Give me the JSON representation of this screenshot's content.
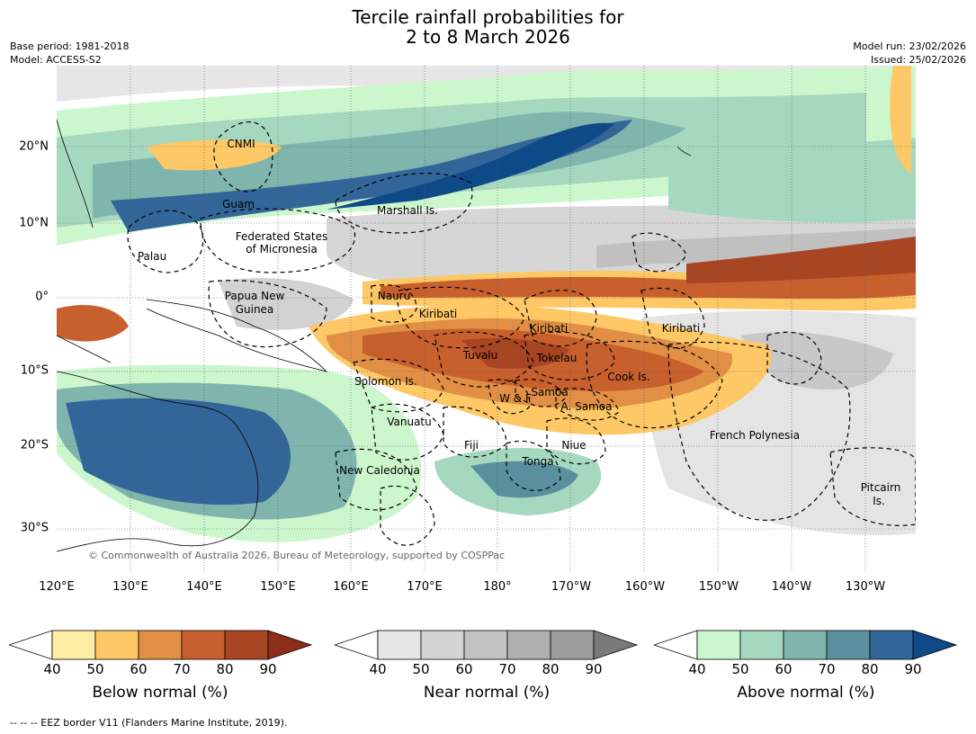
{
  "title_line1": "Tercile rainfall probabilities for",
  "title_line2": "2 to 8 March 2026",
  "base_period": "Base period: 1981-2018",
  "model": "Model: ACCESS-S2",
  "model_run": "Model run: 23/02/2026",
  "issued": "Issued: 25/02/2026",
  "copyright": "© Commonwealth of Australia 2026, Bureau of Meteorology, supported by COSPPac",
  "longitude_labels": [
    "120°E",
    "130°E",
    "140°E",
    "150°E",
    "160°E",
    "170°E",
    "180°",
    "170°W",
    "160°W",
    "150°W",
    "140°W",
    "130°W"
  ],
  "latitude_labels": [
    "20°N",
    "10°N",
    "0°",
    "10°S",
    "20°S",
    "30°S"
  ],
  "regions": [
    "CNMI",
    "Guam",
    "Marshall Is.",
    "Federated States",
    "of Micronesia",
    "Palau",
    "Papua New",
    "Guinea",
    "Nauru",
    "Kiribati",
    "Kiribati",
    "Kiribati",
    "Tuvalu",
    "Tokelau",
    "Cook Is.",
    "Solomon Is.",
    "W & F",
    "Samoa",
    "A. Samoa",
    "Vanuatu",
    "Fiji",
    "Niue",
    "French Polynesia",
    "Tonga",
    "New Caledonia",
    "Pitcairn",
    "Is."
  ],
  "colorbars": [
    {
      "title": "Below normal (%)",
      "ticks": [
        "40",
        "50",
        "60",
        "70",
        "80",
        "90"
      ],
      "colors": [
        "#ffffff",
        "#feeda4",
        "#fdc865",
        "#e08f45",
        "#c8602e",
        "#a84522",
        "#8c2e19"
      ]
    },
    {
      "title": "Near normal (%)",
      "ticks": [
        "40",
        "50",
        "60",
        "70",
        "80",
        "90"
      ],
      "colors": [
        "#ffffff",
        "#e6e6e6",
        "#d4d4d4",
        "#c2c2c2",
        "#b0b0b0",
        "#9c9c9c",
        "#7a7a7a"
      ]
    },
    {
      "title": "Above normal (%)",
      "ticks": [
        "40",
        "50",
        "60",
        "70",
        "80",
        "90"
      ],
      "colors": [
        "#ffffff",
        "#ccf6cc",
        "#a6d8c0",
        "#7fb5ad",
        "#5a909e",
        "#336698",
        "#0f4a88"
      ]
    }
  ],
  "footer": "-- -- -- EEZ border V11 (Flanders Marine Institute, 2019)."
}
